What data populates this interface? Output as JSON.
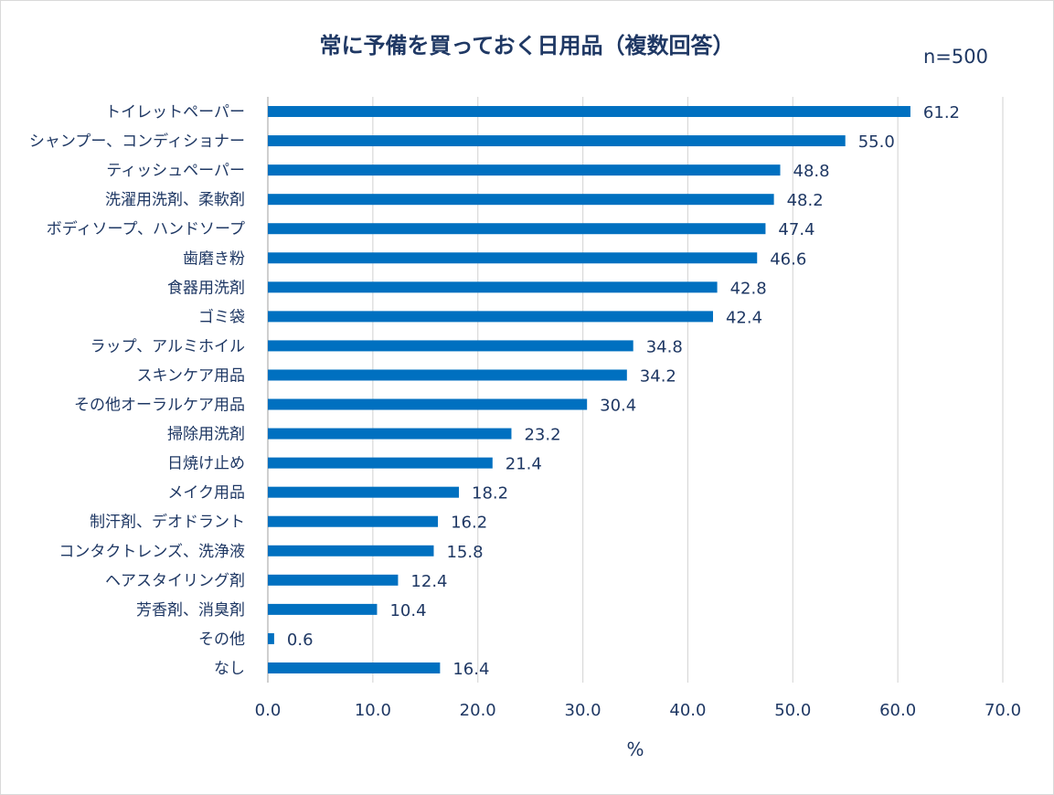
{
  "chart_data": {
    "type": "bar",
    "orientation": "horizontal",
    "title": "常に予備を買っておく日用品（複数回答）",
    "annotation": "n=500",
    "xlabel": "%",
    "ylabel": "",
    "xlim": [
      0,
      70
    ],
    "xticks": [
      "0.0",
      "10.0",
      "20.0",
      "30.0",
      "40.0",
      "50.0",
      "60.0",
      "70.0"
    ],
    "grid": true,
    "bar_color": "#0070c0",
    "categories": [
      "トイレットペーパー",
      "シャンプー、コンディショナー",
      "ティッシュペーパー",
      "洗濯用洗剤、柔軟剤",
      "ボディソープ、ハンドソープ",
      "歯磨き粉",
      "食器用洗剤",
      "ゴミ袋",
      "ラップ、アルミホイル",
      "スキンケア用品",
      "その他オーラルケア用品",
      "掃除用洗剤",
      "日焼け止め",
      "メイク用品",
      "制汗剤、デオドラント",
      "コンタクトレンズ、洗浄液",
      "ヘアスタイリング剤",
      "芳香剤、消臭剤",
      "その他",
      "なし"
    ],
    "values": [
      61.2,
      55.0,
      48.8,
      48.2,
      47.4,
      46.6,
      42.8,
      42.4,
      34.8,
      34.2,
      30.4,
      23.2,
      21.4,
      18.2,
      16.2,
      15.8,
      12.4,
      10.4,
      0.6,
      16.4
    ],
    "labels": [
      "61.2",
      "55.0",
      "48.8",
      "48.2",
      "47.4",
      "46.6",
      "42.8",
      "42.4",
      "34.8",
      "34.2",
      "30.4",
      "23.2",
      "21.4",
      "18.2",
      "16.2",
      "15.8",
      "12.4",
      "10.4",
      "0.6",
      "16.4"
    ]
  }
}
